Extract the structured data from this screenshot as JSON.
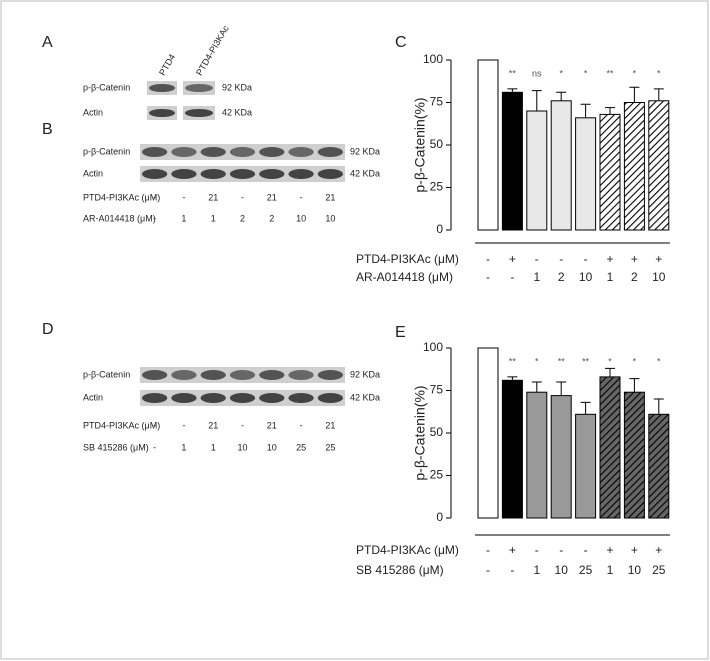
{
  "blots": [
    {
      "panel": "A",
      "lanes": [
        "PTD4",
        "PTD4-PI3KAc"
      ],
      "rows": [
        {
          "label": "p-β-Catenin",
          "size": "92 KDa"
        },
        {
          "label": "Actin",
          "size": "42 KDa"
        }
      ]
    },
    {
      "panel": "B",
      "rows": [
        {
          "label": "p-β-Catenin",
          "size": "92 KDa"
        },
        {
          "label": "Actin",
          "size": "42 KDa"
        }
      ],
      "conditions": [
        {
          "label": "PTD4-PI3KAc (μM)",
          "values": [
            "-",
            "-",
            "21",
            "-",
            "21",
            "-",
            "21"
          ]
        },
        {
          "label": "AR-A014418 (μM)",
          "values": [
            "-",
            "1",
            "1",
            "2",
            "2",
            "10",
            "10"
          ]
        }
      ]
    },
    {
      "panel": "D",
      "rows": [
        {
          "label": "p-β-Catenin",
          "size": "92 KDa"
        },
        {
          "label": "Actin",
          "size": "42 KDa"
        }
      ],
      "conditions": [
        {
          "label": "PTD4-PI3KAc (μM)",
          "values": [
            "-",
            "-",
            "21",
            "-",
            "21",
            "-",
            "21"
          ]
        },
        {
          "label": "SB 415286 (μM)",
          "values": [
            "-",
            "1",
            "1",
            "10",
            "10",
            "25",
            "25"
          ]
        }
      ]
    }
  ],
  "chart_data": [
    {
      "type": "bar",
      "panel": "C",
      "y_label": "p-β-Catenin(%)",
      "ylim": [
        0,
        100
      ],
      "yticks": [
        0,
        25,
        50,
        75,
        100
      ],
      "values": [
        100,
        81,
        70,
        76,
        66,
        68,
        75,
        76
      ],
      "errors": [
        null,
        2,
        12,
        5,
        8,
        4,
        9,
        7
      ],
      "annotations": [
        null,
        "**",
        "ns",
        "*",
        "*",
        "**",
        "*",
        "*"
      ],
      "fills": [
        "#ffffff",
        "#000000",
        "#e8e8e8",
        "#e8e8e8",
        "#e8e8e8",
        "#ffffff",
        "#ffffff",
        "#ffffff"
      ],
      "hatched": [
        false,
        false,
        false,
        false,
        false,
        true,
        true,
        true
      ],
      "conditions": [
        {
          "label": "PTD4-PI3KAc (μM)",
          "values": [
            "-",
            "+",
            "-",
            "-",
            "-",
            "+",
            "+",
            "+"
          ]
        },
        {
          "label": "AR-A014418 (μM)",
          "values": [
            "-",
            "-",
            "1",
            "2",
            "10",
            "1",
            "2",
            "10"
          ]
        }
      ]
    },
    {
      "type": "bar",
      "panel": "E",
      "y_label": "p-β-Catenin(%)",
      "ylim": [
        0,
        100
      ],
      "yticks": [
        0,
        25,
        50,
        75,
        100
      ],
      "values": [
        100,
        81,
        74,
        72,
        61,
        83,
        74,
        61
      ],
      "errors": [
        null,
        2,
        6,
        8,
        7,
        5,
        8,
        9
      ],
      "annotations": [
        null,
        "**",
        "*",
        "**",
        "**",
        "*",
        "*",
        "*"
      ],
      "fills": [
        "#ffffff",
        "#000000",
        "#999999",
        "#999999",
        "#999999",
        "#666666",
        "#666666",
        "#666666"
      ],
      "hatched": [
        false,
        false,
        false,
        false,
        false,
        true,
        true,
        true
      ],
      "conditions": [
        {
          "label": "PTD4-PI3KAc (μM)",
          "values": [
            "-",
            "+",
            "-",
            "-",
            "-",
            "+",
            "+",
            "+"
          ]
        },
        {
          "label": "SB 415286 (μM)",
          "values": [
            "-",
            "-",
            "1",
            "10",
            "25",
            "1",
            "10",
            "25"
          ]
        }
      ]
    }
  ]
}
